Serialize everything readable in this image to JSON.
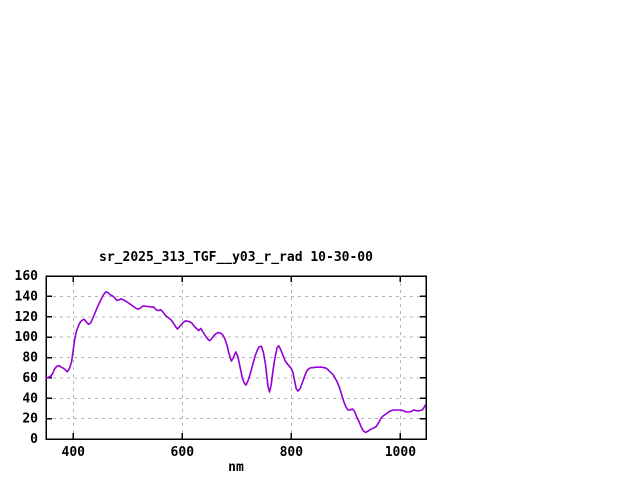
{
  "page": {
    "background_color": "#ffffff"
  },
  "chart_data": {
    "type": "line",
    "title": "sr_2025_313_TGF__y03_r_rad 10-30-00",
    "xlabel": "nm",
    "ylabel": "",
    "xlim": [
      350,
      1047
    ],
    "ylim": [
      0,
      160
    ],
    "xticks": [
      400,
      600,
      800,
      1000
    ],
    "yticks": [
      0,
      20,
      40,
      60,
      80,
      100,
      120,
      140,
      160
    ],
    "grid": true,
    "legend": "none",
    "line_color": "#9400d3",
    "grid_color": "#b4b4b4",
    "axis_color": "#000000",
    "series": [
      {
        "name": "sr_2025_313_TGF__y03_r_rad",
        "points": [
          [
            350,
            60
          ],
          [
            354,
            60.5
          ],
          [
            358,
            61.5
          ],
          [
            362,
            64
          ],
          [
            366,
            69
          ],
          [
            370,
            71.5
          ],
          [
            374,
            72
          ],
          [
            378,
            70.5
          ],
          [
            382,
            69.5
          ],
          [
            386,
            67.5
          ],
          [
            389,
            66
          ],
          [
            393,
            69
          ],
          [
            397,
            76
          ],
          [
            400,
            88
          ],
          [
            403,
            99
          ],
          [
            406,
            106
          ],
          [
            409,
            110.5
          ],
          [
            412,
            114
          ],
          [
            416,
            116.5
          ],
          [
            420,
            117.5
          ],
          [
            424,
            115
          ],
          [
            428,
            112.5
          ],
          [
            432,
            114
          ],
          [
            436,
            119
          ],
          [
            440,
            124
          ],
          [
            444,
            129
          ],
          [
            448,
            133.5
          ],
          [
            452,
            138
          ],
          [
            456,
            142
          ],
          [
            460,
            144.5
          ],
          [
            464,
            143.5
          ],
          [
            468,
            141.5
          ],
          [
            472,
            140.5
          ],
          [
            476,
            138.5
          ],
          [
            480,
            136
          ],
          [
            484,
            136.5
          ],
          [
            488,
            137.5
          ],
          [
            492,
            136.5
          ],
          [
            496,
            135.5
          ],
          [
            500,
            134
          ],
          [
            504,
            132.5
          ],
          [
            508,
            131
          ],
          [
            512,
            129.5
          ],
          [
            516,
            128
          ],
          [
            520,
            127.5
          ],
          [
            524,
            129
          ],
          [
            528,
            130.5
          ],
          [
            532,
            130.5
          ],
          [
            536,
            130
          ],
          [
            540,
            130
          ],
          [
            544,
            129.5
          ],
          [
            548,
            129.5
          ],
          [
            552,
            127
          ],
          [
            556,
            126
          ],
          [
            560,
            127
          ],
          [
            564,
            125
          ],
          [
            568,
            122
          ],
          [
            572,
            120
          ],
          [
            576,
            118.5
          ],
          [
            580,
            116.5
          ],
          [
            584,
            113.5
          ],
          [
            588,
            110
          ],
          [
            591,
            108
          ],
          [
            594,
            109.5
          ],
          [
            598,
            112
          ],
          [
            602,
            114.5
          ],
          [
            606,
            116
          ],
          [
            610,
            115.5
          ],
          [
            614,
            115
          ],
          [
            618,
            113.5
          ],
          [
            622,
            110.5
          ],
          [
            626,
            108.5
          ],
          [
            630,
            106.5
          ],
          [
            634,
            108.5
          ],
          [
            638,
            105
          ],
          [
            642,
            101.5
          ],
          [
            646,
            98.5
          ],
          [
            650,
            96.5
          ],
          [
            654,
            98.5
          ],
          [
            658,
            101.5
          ],
          [
            662,
            103.5
          ],
          [
            666,
            104.5
          ],
          [
            670,
            104
          ],
          [
            674,
            102.5
          ],
          [
            678,
            98.5
          ],
          [
            682,
            92
          ],
          [
            686,
            83
          ],
          [
            690,
            76.5
          ],
          [
            694,
            80
          ],
          [
            698,
            85.5
          ],
          [
            702,
            81
          ],
          [
            706,
            70.5
          ],
          [
            710,
            60
          ],
          [
            714,
            54.5
          ],
          [
            717,
            53
          ],
          [
            721,
            58
          ],
          [
            725,
            64.5
          ],
          [
            729,
            72.5
          ],
          [
            733,
            80.5
          ],
          [
            737,
            86.5
          ],
          [
            741,
            90.5
          ],
          [
            745,
            91
          ],
          [
            749,
            84.5
          ],
          [
            753,
            72
          ],
          [
            757,
            52
          ],
          [
            760,
            46
          ],
          [
            763,
            53
          ],
          [
            766,
            66
          ],
          [
            770,
            80
          ],
          [
            774,
            90
          ],
          [
            777,
            91.5
          ],
          [
            781,
            87
          ],
          [
            785,
            81.5
          ],
          [
            789,
            76.5
          ],
          [
            793,
            73.5
          ],
          [
            797,
            71
          ],
          [
            800,
            69
          ],
          [
            803,
            65
          ],
          [
            806,
            57
          ],
          [
            809,
            49.5
          ],
          [
            812,
            47
          ],
          [
            816,
            49.5
          ],
          [
            820,
            55
          ],
          [
            824,
            61
          ],
          [
            828,
            66.5
          ],
          [
            832,
            69
          ],
          [
            836,
            70
          ],
          [
            840,
            70
          ],
          [
            844,
            70.5
          ],
          [
            848,
            70.5
          ],
          [
            852,
            70.5
          ],
          [
            856,
            70.5
          ],
          [
            860,
            70
          ],
          [
            864,
            69.5
          ],
          [
            868,
            67.5
          ],
          [
            872,
            65.5
          ],
          [
            876,
            63.5
          ],
          [
            880,
            60
          ],
          [
            884,
            56
          ],
          [
            888,
            51
          ],
          [
            892,
            44
          ],
          [
            896,
            37
          ],
          [
            900,
            31.5
          ],
          [
            904,
            28.5
          ],
          [
            908,
            28.5
          ],
          [
            912,
            29.5
          ],
          [
            916,
            27
          ],
          [
            920,
            21.5
          ],
          [
            924,
            17.5
          ],
          [
            928,
            12
          ],
          [
            932,
            8
          ],
          [
            936,
            6.5
          ],
          [
            940,
            7.5
          ],
          [
            944,
            9
          ],
          [
            948,
            10
          ],
          [
            952,
            11
          ],
          [
            956,
            12.5
          ],
          [
            960,
            16
          ],
          [
            964,
            20
          ],
          [
            968,
            22.5
          ],
          [
            972,
            24
          ],
          [
            976,
            25.5
          ],
          [
            980,
            27
          ],
          [
            984,
            28
          ],
          [
            988,
            28.5
          ],
          [
            992,
            28.5
          ],
          [
            996,
            28.5
          ],
          [
            1000,
            28.5
          ],
          [
            1004,
            28
          ],
          [
            1008,
            27
          ],
          [
            1012,
            26.5
          ],
          [
            1016,
            26.5
          ],
          [
            1020,
            27
          ],
          [
            1024,
            28.5
          ],
          [
            1028,
            28
          ],
          [
            1032,
            27.5
          ],
          [
            1036,
            28
          ],
          [
            1040,
            28.5
          ],
          [
            1043,
            30.5
          ],
          [
            1046,
            33.5
          ]
        ]
      }
    ]
  }
}
